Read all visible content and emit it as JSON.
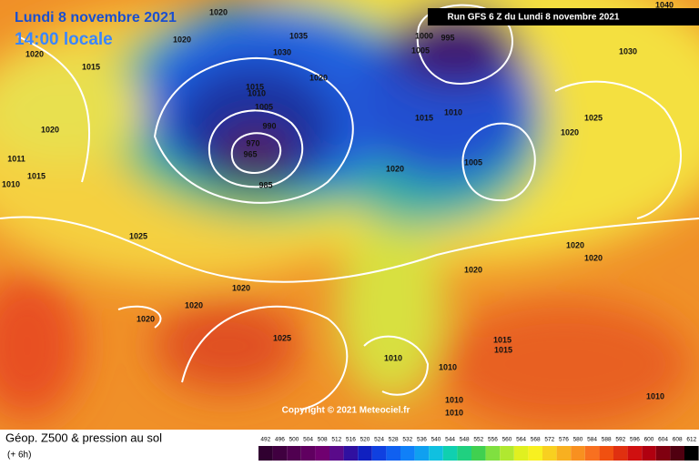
{
  "header": {
    "title": "Lundi 8 novembre 2021",
    "time": "14:00 locale",
    "run": "Run GFS 6 Z du Lundi 8 novembre 2021"
  },
  "copyright": "Copyright © 2021 Meteociel.fr",
  "footer": {
    "title": "Géop. Z500 & pression au sol",
    "lead": "(+ 6h)"
  },
  "scale": [
    492,
    496,
    500,
    504,
    508,
    512,
    516,
    520,
    524,
    528,
    532,
    536,
    540,
    544,
    548,
    552,
    556,
    560,
    564,
    568,
    572,
    576,
    580,
    584,
    588,
    592,
    596,
    600,
    604,
    608,
    612
  ],
  "isobar_labels": [
    "1020",
    "1020",
    "1020",
    "1015",
    "1035",
    "1030",
    "1020",
    "1000",
    "995",
    "1005",
    "1010",
    "1015",
    "1030",
    "1040",
    "1025",
    "1020",
    "1020",
    "1011",
    "1015",
    "1010",
    "970",
    "965",
    "985",
    "990",
    "1015",
    "1010",
    "1005",
    "1020",
    "1005",
    "1025",
    "1020",
    "1020",
    "1020",
    "1020",
    "1020",
    "1020",
    "1025",
    "1015",
    "1015",
    "1010",
    "1010",
    "1010",
    "1010",
    "1010"
  ]
}
